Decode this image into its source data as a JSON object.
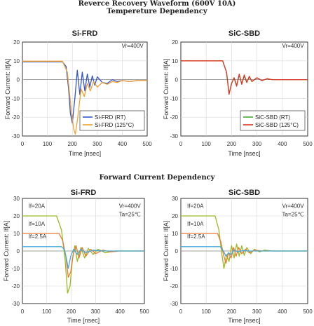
{
  "figure": {
    "title_line1": "Reverce Recovery Waveform (600V 10A)",
    "title_line2": "Tempereture Dependency",
    "section2_title": "Forward Current Dependency"
  },
  "chart_data": [
    {
      "type": "line",
      "title": "Si-FRD",
      "xlabel": "Time [nsec]",
      "ylabel": "Forward Current: If[A]",
      "xlim": [
        0,
        500
      ],
      "ylim": [
        -30,
        20
      ],
      "xticks": [
        0,
        100,
        200,
        300,
        400,
        500
      ],
      "yticks": [
        -30,
        -20,
        -10,
        0,
        10,
        20
      ],
      "annotations": [
        "Vr=400V"
      ],
      "legend": "bottom-right",
      "series": [
        {
          "name": "Si-FRD (RT)",
          "color": "#3355cc",
          "x": [
            0,
            160,
            175,
            185,
            192,
            200,
            210,
            220,
            230,
            240,
            250,
            260,
            270,
            280,
            290,
            300,
            320,
            340,
            360,
            380,
            400,
            430,
            460,
            500
          ],
          "y": [
            9.5,
            9.5,
            7,
            -5,
            -18,
            -23,
            -10,
            5,
            -8,
            4,
            -6,
            3,
            -4,
            2,
            -3,
            1.5,
            -1.5,
            -2,
            0,
            -1,
            -0.5,
            -1,
            -0.5,
            -0.5
          ]
        },
        {
          "name": "Si-FRD (125°C)",
          "color": "#f0a030",
          "x": [
            0,
            160,
            180,
            195,
            205,
            212,
            222,
            235,
            248,
            260,
            272,
            285,
            300,
            320,
            340,
            360,
            380,
            400,
            430,
            460,
            500
          ],
          "y": [
            9.8,
            9.8,
            4,
            -15,
            -26,
            -29,
            -20,
            -5,
            -9,
            -2,
            -6,
            -1,
            -4,
            -1.5,
            -2.5,
            -1,
            -1.5,
            -0.5,
            -1,
            -0.5,
            -0.5
          ]
        }
      ]
    },
    {
      "type": "line",
      "title": "SiC-SBD",
      "xlabel": "Time [nsec]",
      "ylabel": "Forward Current: If[A]",
      "xlim": [
        0,
        500
      ],
      "ylim": [
        -30,
        20
      ],
      "xticks": [
        0,
        100,
        200,
        300,
        400,
        500
      ],
      "yticks": [
        -30,
        -20,
        -10,
        0,
        10,
        20
      ],
      "annotations": [
        "Vr=400V"
      ],
      "legend": "bottom-right",
      "series": [
        {
          "name": "SiC-SBD (RT)",
          "color": "#44aa33",
          "x": [
            0,
            165,
            180,
            190,
            200,
            210,
            220,
            230,
            240,
            250,
            260,
            270,
            280,
            300,
            320,
            340,
            360,
            400,
            450,
            500
          ],
          "y": [
            10,
            10,
            4,
            -7.5,
            -2,
            1,
            -3,
            2.5,
            -2,
            2,
            -1.5,
            1.5,
            -1,
            1,
            -0.5,
            0.5,
            0,
            0,
            0,
            0
          ]
        },
        {
          "name": "SiC-SBD (125°C)",
          "color": "#dd3322",
          "x": [
            0,
            165,
            180,
            190,
            200,
            210,
            220,
            230,
            240,
            250,
            260,
            270,
            280,
            300,
            320,
            340,
            360,
            400,
            450,
            500
          ],
          "y": [
            10,
            10,
            4,
            -7.8,
            -2,
            1,
            -3.5,
            3,
            -2.5,
            2.5,
            -1.5,
            1.8,
            -1,
            1,
            -0.5,
            0.5,
            0,
            0,
            0,
            0
          ]
        }
      ]
    },
    {
      "type": "line",
      "title": "Si-FRD",
      "xlabel": "Time [nsec]",
      "ylabel": "Forward Current: If[A]",
      "xlim": [
        0,
        500
      ],
      "ylim": [
        -30,
        30
      ],
      "xticks": [
        0,
        100,
        200,
        300,
        400,
        500
      ],
      "yticks": [
        -30,
        -20,
        -10,
        0,
        10,
        20,
        30
      ],
      "annotations": [
        "Vr=400V",
        "Ta=25℃",
        "If=20A",
        "If=10A",
        "If=2.5A"
      ],
      "series": [
        {
          "name": "If=20A",
          "color": "#99bb22",
          "x": [
            0,
            140,
            160,
            175,
            185,
            195,
            205,
            215,
            225,
            240,
            255,
            270,
            290,
            310,
            340,
            380,
            420,
            460,
            500
          ],
          "y": [
            20,
            20,
            12,
            -5,
            -24,
            -20,
            -5,
            3,
            -6,
            2,
            -4,
            1.5,
            -2,
            1,
            -1,
            0,
            0,
            0,
            0
          ]
        },
        {
          "name": "If=10A",
          "color": "#ee7733",
          "x": [
            0,
            150,
            165,
            178,
            188,
            198,
            208,
            220,
            232,
            245,
            260,
            280,
            300,
            330,
            360,
            400,
            450,
            500
          ],
          "y": [
            10,
            10,
            6,
            -3,
            -15,
            -12,
            -2,
            3,
            -4,
            2,
            -3,
            1,
            -1.5,
            0.5,
            -0.5,
            0,
            0,
            0
          ]
        },
        {
          "name": "If=2.5A",
          "color": "#44aadd",
          "x": [
            0,
            160,
            172,
            180,
            188,
            198,
            210,
            225,
            240,
            260,
            290,
            330,
            380,
            440,
            500
          ],
          "y": [
            2.5,
            2.5,
            1,
            -4,
            -10,
            -3,
            1,
            -2,
            1,
            -1,
            0.5,
            0,
            0,
            0,
            0
          ]
        }
      ]
    },
    {
      "type": "line",
      "title": "SiC-SBD",
      "xlabel": "Time [nsec]",
      "ylabel": "Forward Current: If[A]",
      "xlim": [
        0,
        500
      ],
      "ylim": [
        -30,
        30
      ],
      "xticks": [
        0,
        100,
        200,
        300,
        400,
        500
      ],
      "yticks": [
        -30,
        -20,
        -10,
        0,
        10,
        20,
        30
      ],
      "annotations": [
        "Vr=400V",
        "Ta=25℃",
        "If=20A",
        "If=10A",
        "If=2.5A"
      ],
      "series": [
        {
          "name": "If=20A",
          "color": "#99bb22",
          "x": [
            0,
            135,
            150,
            160,
            170,
            180,
            190,
            200,
            210,
            220,
            230,
            240,
            250,
            260,
            275,
            290,
            310,
            330,
            360,
            400,
            450,
            500
          ],
          "y": [
            20,
            20,
            12,
            0,
            -10,
            -2,
            -6,
            3,
            -4,
            4,
            -3,
            3,
            -2.5,
            2,
            -1.5,
            1,
            -0.5,
            0.5,
            0,
            0,
            0,
            0
          ]
        },
        {
          "name": "If=10A",
          "color": "#ee7733",
          "x": [
            0,
            145,
            158,
            168,
            178,
            188,
            198,
            208,
            218,
            228,
            240,
            255,
            270,
            290,
            320,
            360,
            420,
            500
          ],
          "y": [
            10,
            10,
            5,
            -2,
            -7,
            -1,
            -4,
            2,
            -3,
            2,
            -1.5,
            1,
            -1,
            0.5,
            0,
            0,
            0,
            0
          ]
        },
        {
          "name": "If=2.5A",
          "color": "#44aadd",
          "x": [
            0,
            155,
            168,
            178,
            188,
            198,
            210,
            225,
            245,
            270,
            310,
            360,
            420,
            500
          ],
          "y": [
            2.5,
            2.5,
            0,
            -3,
            -1,
            -2,
            0.5,
            -0.5,
            0.3,
            0,
            0,
            0,
            0,
            0
          ]
        }
      ]
    }
  ]
}
